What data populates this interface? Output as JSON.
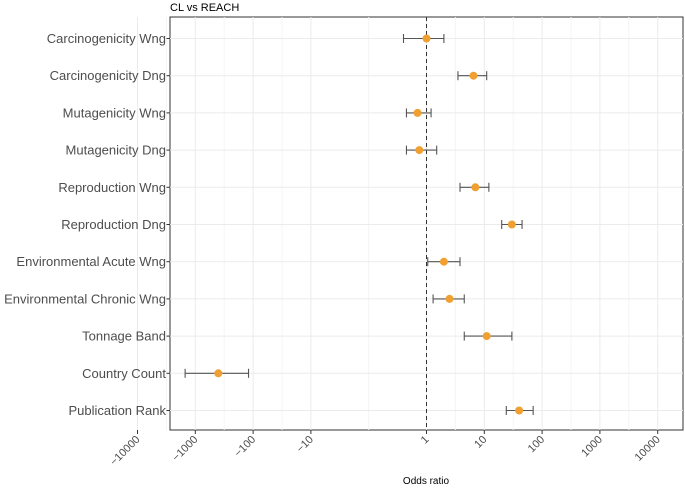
{
  "chart_data": {
    "type": "forest",
    "title": "CL vs REACH",
    "xlabel": "Odds ratio",
    "ylabel": "",
    "x_scale": "pseudo-log (signed)",
    "x_ticks": [
      "-10000",
      "-1000",
      "-100",
      "-10",
      "1",
      "10",
      "100",
      "1000",
      "10000"
    ],
    "reference_line": 1,
    "grid": true,
    "colors": {
      "point": "#F0A030",
      "errorbar": "#555555",
      "grid": "#EBEBEB",
      "reference": "#333333"
    },
    "categories": [
      "Carcinogenicity Wng",
      "Carcinogenicity Dng",
      "Mutagenicity Wng",
      "Mutagenicity Dng",
      "Reproduction Wng",
      "Reproduction Dng",
      "Environmental Acute Wng",
      "Environmental Chronic Wng",
      "Tonnage Band",
      "Country Count",
      "Publication Rank"
    ],
    "estimates": [
      1.0,
      6.5,
      0.7,
      0.75,
      7.0,
      30,
      2.0,
      2.5,
      11,
      -400,
      40
    ],
    "lower": [
      0.4,
      3.5,
      0.45,
      0.45,
      3.8,
      20,
      1.05,
      1.3,
      4.5,
      -1500,
      24
    ],
    "upper": [
      2.0,
      11,
      1.2,
      1.5,
      12,
      45,
      3.8,
      4.5,
      30,
      -120,
      70
    ]
  }
}
